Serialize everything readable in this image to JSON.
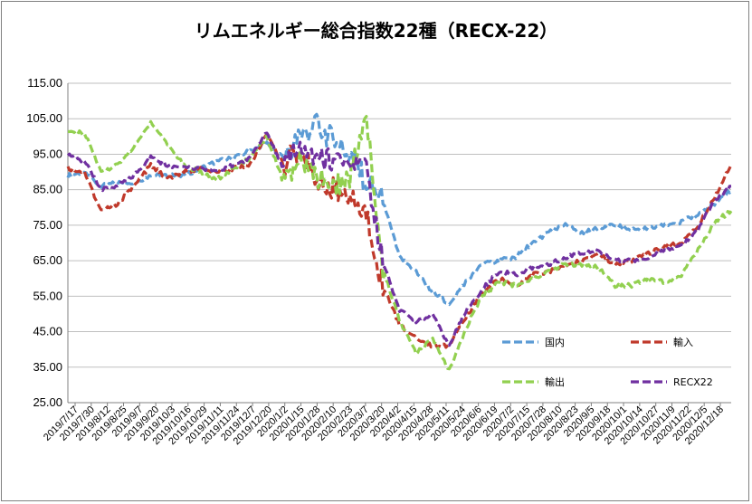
{
  "chart_data": {
    "type": "line",
    "title": "リムエネルギー総合指数22種（RECX-22）",
    "ylim": [
      25,
      115
    ],
    "yticks": [
      "115.00",
      "105.00",
      "95.00",
      "85.00",
      "75.00",
      "65.00",
      "55.00",
      "45.00",
      "35.00",
      "25.00"
    ],
    "grid": "horizontal",
    "legend_position": "lower-right inside plot",
    "x_tick_labels": [
      "2019/7/17",
      "2019/7/30",
      "2019/8/12",
      "2019/8/25",
      "2019/9/7",
      "2019/9/20",
      "2019/10/3",
      "2019/10/16",
      "2019/10/29",
      "2019/11/11",
      "2019/11/24",
      "2019/12/7",
      "2019/12/20",
      "2020/1/2",
      "2020/1/15",
      "2020/1/28",
      "2020/2/10",
      "2020/2/23",
      "2020/3/7",
      "2020/3/20",
      "2020/4/2",
      "2020/4/15",
      "2020/4/28",
      "2020/5/11",
      "2020/5/24",
      "2020/6/6",
      "2020/6/19",
      "2020/7/2",
      "2020/7/15",
      "2020/7/28",
      "2020/8/10",
      "2020/8/23",
      "2020/9/5",
      "2020/9/18",
      "2020/10/1",
      "2020/10/14",
      "2020/10/27",
      "2020/11/9",
      "2020/11/22",
      "2020/12/5",
      "2020/12/18"
    ],
    "x": [
      0,
      5,
      10,
      15,
      20,
      25,
      30,
      35,
      40,
      45,
      50,
      55,
      60,
      65,
      70,
      75,
      80,
      85,
      90,
      95,
      100,
      105,
      110,
      115,
      120,
      125,
      130,
      135,
      140,
      145,
      150,
      155,
      160,
      165,
      170,
      175,
      180,
      185,
      190,
      195,
      200
    ],
    "series": [
      {
        "name": "国内",
        "color": "#5B9BD5",
        "values": [
          89,
          90,
          86,
          87,
          87,
          89,
          89,
          89,
          91,
          93,
          94,
          96,
          98,
          94,
          100,
          103,
          99,
          95,
          87,
          82,
          66,
          62,
          56,
          53,
          59,
          64,
          65,
          66,
          70,
          73,
          75,
          73,
          74,
          75,
          74,
          74,
          75,
          76,
          78,
          81,
          85
        ]
      },
      {
        "name": "輸入",
        "color": "#C0392B",
        "values": [
          91,
          90,
          79,
          81,
          86,
          92,
          88,
          90,
          91,
          90,
          91,
          92,
          101,
          92,
          97,
          88,
          85,
          82,
          78,
          58,
          47,
          43,
          41,
          41,
          49,
          56,
          60,
          58,
          61,
          62,
          64,
          65,
          67,
          64,
          65,
          67,
          69,
          70,
          75,
          83,
          92
        ]
      },
      {
        "name": "輸出",
        "color": "#92D050",
        "values": [
          101,
          101,
          90,
          92,
          97,
          104,
          98,
          92,
          90,
          88,
          91,
          94,
          100,
          87,
          93,
          89,
          86,
          89,
          105,
          63,
          48,
          39,
          43,
          34,
          46,
          55,
          59,
          58,
          60,
          62,
          64,
          64,
          63,
          58,
          58,
          60,
          59,
          61,
          68,
          76,
          79
        ]
      },
      {
        "name": "RECX22",
        "color": "#7030A0",
        "values": [
          95,
          93,
          85,
          86,
          89,
          94,
          92,
          91,
          91,
          90,
          92,
          94,
          101,
          91,
          98,
          95,
          93,
          91,
          91,
          65,
          51,
          48,
          50,
          41,
          51,
          57,
          62,
          61,
          63,
          64,
          66,
          67,
          68,
          65,
          65,
          66,
          68,
          69,
          74,
          82,
          86
        ]
      }
    ]
  }
}
